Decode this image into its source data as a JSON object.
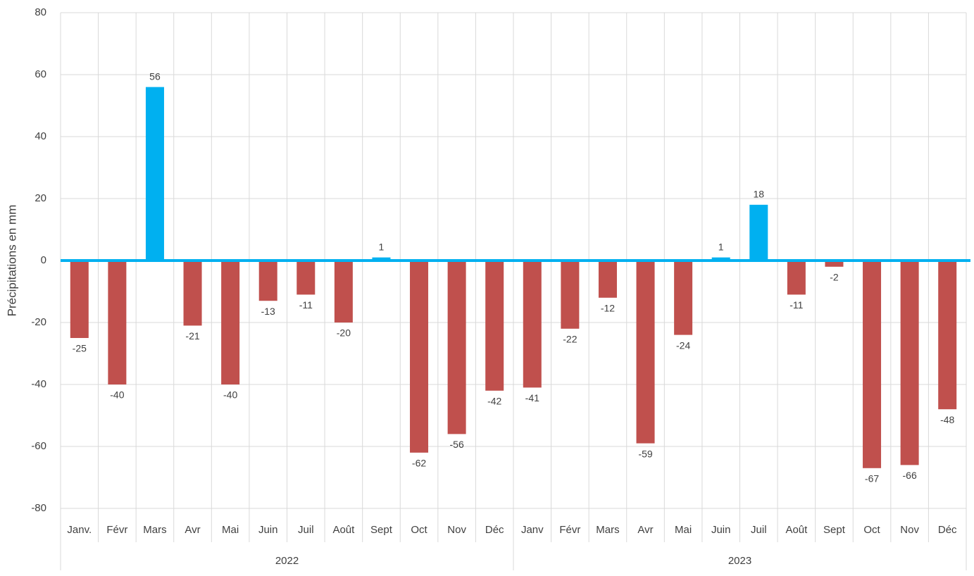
{
  "chart_data": {
    "type": "bar",
    "ylabel": "Précipitations en mm",
    "groups": [
      {
        "label": "2022",
        "categories": [
          "Janv.",
          "Févr",
          "Mars",
          "Avr",
          "Mai",
          "Juin",
          "Juil",
          "Août",
          "Sept",
          "Oct",
          "Nov",
          "Déc"
        ],
        "values": [
          -25,
          -40,
          56,
          -21,
          -40,
          -13,
          -11,
          -20,
          1,
          -62,
          -56,
          -42
        ]
      },
      {
        "label": "2023",
        "categories": [
          "Janv",
          "Févr",
          "Mars",
          "Avr",
          "Mai",
          "Juin",
          "Juil",
          "Août",
          "Sept",
          "Oct",
          "Nov",
          "Déc"
        ],
        "values": [
          -41,
          -22,
          -12,
          -59,
          -24,
          1,
          18,
          -11,
          -2,
          -67,
          -66,
          -48
        ]
      }
    ],
    "positive_color": "#00b0f0",
    "negative_color": "#c0504d",
    "zero_line_color": "#00b0f0",
    "ylim": [
      -80,
      80
    ],
    "yticks": [
      -80,
      -60,
      -40,
      -20,
      0,
      20,
      40,
      60,
      80
    ],
    "grid": true
  }
}
